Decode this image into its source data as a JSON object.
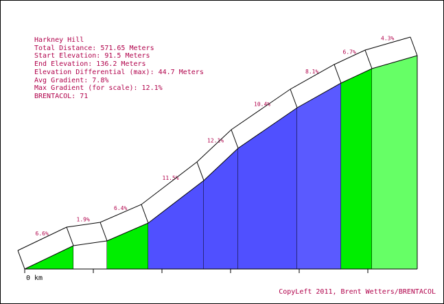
{
  "chart_data": {
    "type": "area",
    "title": "Harkney Hill",
    "stats": [
      "Total Distance: 571.65 Meters",
      "Start Elevation: 91.5 Meters",
      "End Elevation: 136.2 Meters",
      "Elevation Differential (max): 44.7 Meters",
      "Avg Gradient: 7.8%",
      "Max Gradient (for scale): 12.1%",
      "BRENTACOL: 71"
    ],
    "x_axis_start_label": "0 km",
    "credit": "CopyLeft 2011, Brent Wetters/BRENTACOL",
    "segments": [
      {
        "grade": 6.6,
        "label": "6.6%",
        "color": "#00ee00"
      },
      {
        "grade": 1.9,
        "label": "1.9%",
        "color": "#ffffff"
      },
      {
        "grade": 6.4,
        "label": "6.4%",
        "color": "#00ee00"
      },
      {
        "grade": 11.5,
        "label": "11.5%",
        "color": "#5050ff"
      },
      {
        "grade": 12.1,
        "label": "12.1%",
        "color": "#5050ff"
      },
      {
        "grade": 10.4,
        "label": "10.4%",
        "color": "#5050ff"
      },
      {
        "grade": 8.1,
        "label": "8.1%",
        "color": "#5a5aff"
      },
      {
        "grade": 6.7,
        "label": "6.7%",
        "color": "#00ee00"
      },
      {
        "grade": 4.3,
        "label": "4.3%",
        "color": "#66ff66"
      }
    ]
  }
}
